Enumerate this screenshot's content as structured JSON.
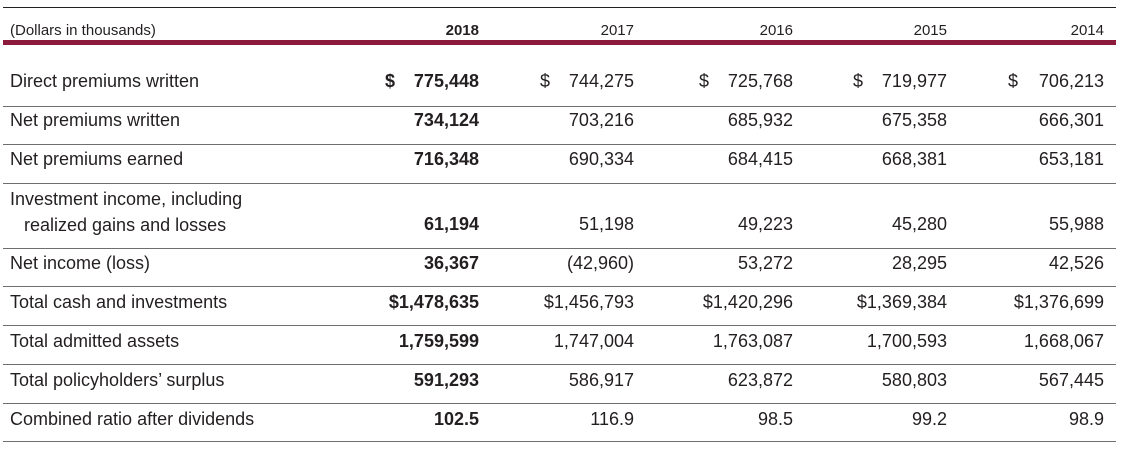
{
  "table": {
    "units_label": "(Dollars in thousands)",
    "years": [
      "2018",
      "2017",
      "2016",
      "2015",
      "2014"
    ],
    "rows": [
      {
        "label": "Direct premiums written",
        "label_line2": "",
        "values": [
          "775,448",
          "744,275",
          "725,768",
          "719,977",
          "706,213"
        ],
        "currency_symbol": "$"
      },
      {
        "label": "Net premiums written",
        "label_line2": "",
        "values": [
          "734,124",
          "703,216",
          "685,932",
          "675,358",
          "666,301"
        ],
        "currency_symbol": ""
      },
      {
        "label": "Net premiums earned",
        "label_line2": "",
        "values": [
          "716,348",
          "690,334",
          "684,415",
          "668,381",
          "653,181"
        ],
        "currency_symbol": ""
      },
      {
        "label": "Investment income, including",
        "label_line2": "realized gains and losses",
        "values": [
          "61,194",
          "51,198",
          "49,223",
          "45,280",
          "55,988"
        ],
        "currency_symbol": ""
      },
      {
        "label": "Net income (loss)",
        "label_line2": "",
        "values": [
          "36,367",
          "(42,960)",
          "53,272",
          "28,295",
          "42,526"
        ],
        "currency_symbol": ""
      },
      {
        "label": "Total cash and investments",
        "label_line2": "",
        "values": [
          "$1,478,635",
          "$1,456,793",
          "$1,420,296",
          "$1,369,384",
          "$1,376,699"
        ],
        "currency_symbol": ""
      },
      {
        "label": "Total admitted assets",
        "label_line2": "",
        "values": [
          "1,759,599",
          "1,747,004",
          "1,763,087",
          "1,700,593",
          "1,668,067"
        ],
        "currency_symbol": ""
      },
      {
        "label": "Total policyholders’ surplus",
        "label_line2": "",
        "values": [
          "591,293",
          "586,917",
          "623,872",
          "580,803",
          "567,445"
        ],
        "currency_symbol": ""
      },
      {
        "label": "Combined ratio after dividends",
        "label_line2": "",
        "values": [
          "102.5",
          "116.9",
          "98.5",
          "99.2",
          "98.9"
        ],
        "currency_symbol": ""
      }
    ]
  },
  "colors": {
    "accent_rule": "#8b1a3c",
    "text": "#231f20",
    "divider": "#6f6f6f"
  }
}
